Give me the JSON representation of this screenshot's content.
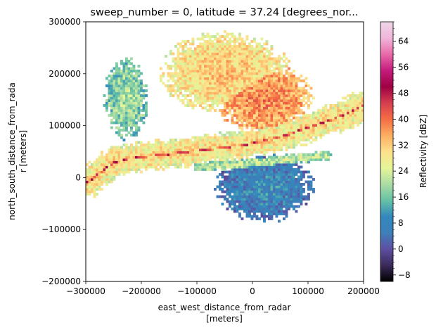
{
  "chart_data": {
    "type": "heatmap",
    "title": "sweep_number = 0, latitude = 37.24 [degrees_nor...",
    "xlabel_lines": [
      "east_west_distance_from_radar",
      "[meters]"
    ],
    "ylabel_lines": [
      "north_south_distance_from_rada",
      "r [meters]"
    ],
    "xlim": [
      -300000,
      200000
    ],
    "ylim": [
      -200000,
      300000
    ],
    "xticks": [
      {
        "value": -300000,
        "label": "−300000"
      },
      {
        "value": -200000,
        "label": "−200000"
      },
      {
        "value": -100000,
        "label": "−100000"
      },
      {
        "value": 0,
        "label": "0"
      },
      {
        "value": 100000,
        "label": "100000"
      },
      {
        "value": 200000,
        "label": "200000"
      }
    ],
    "yticks": [
      {
        "value": -200000,
        "label": "−200000"
      },
      {
        "value": -100000,
        "label": "−100000"
      },
      {
        "value": 0,
        "label": "0"
      },
      {
        "value": 100000,
        "label": "100000"
      },
      {
        "value": 200000,
        "label": "200000"
      },
      {
        "value": 300000,
        "label": "300000"
      }
    ],
    "colorbar": {
      "label": "Reflectivity [dBZ]",
      "range": [
        -10,
        70
      ],
      "ticks": [
        {
          "value": -8,
          "label": "−8"
        },
        {
          "value": 0,
          "label": "0"
        },
        {
          "value": 8,
          "label": "8"
        },
        {
          "value": 16,
          "label": "16"
        },
        {
          "value": 24,
          "label": "24"
        },
        {
          "value": 32,
          "label": "32"
        },
        {
          "value": 40,
          "label": "40"
        },
        {
          "value": 48,
          "label": "48"
        },
        {
          "value": 56,
          "label": "56"
        },
        {
          "value": 64,
          "label": "64"
        }
      ],
      "colormap": "Spectral_r",
      "colormap_stops": [
        "#000000",
        "#3b2a5a",
        "#5e4fa2",
        "#3e7fb9",
        "#3288bd",
        "#66c2a5",
        "#abdda4",
        "#e6f598",
        "#fee08b",
        "#fdae61",
        "#f46d43",
        "#d53e4f",
        "#9e0142",
        "#c51b7d",
        "#e86aa8",
        "#f1b6da",
        "#efd6e8"
      ]
    },
    "regions": [
      {
        "kind": "band",
        "points": [
          [
            -300000,
            -12000
          ],
          [
            -280000,
            5000
          ],
          [
            -250000,
            28000
          ],
          [
            -220000,
            35000
          ],
          [
            -180000,
            40000
          ],
          [
            -140000,
            45000
          ],
          [
            -100000,
            50000
          ],
          [
            -60000,
            55000
          ],
          [
            -20000,
            60000
          ],
          [
            20000,
            70000
          ],
          [
            60000,
            80000
          ],
          [
            100000,
            95000
          ],
          [
            140000,
            110000
          ],
          [
            175000,
            125000
          ],
          [
            200000,
            140000
          ]
        ],
        "halfwidth": 12000,
        "dbz": 42
      },
      {
        "kind": "band",
        "points": [
          [
            -300000,
            -12000
          ],
          [
            -280000,
            5000
          ],
          [
            -250000,
            28000
          ],
          [
            -220000,
            35000
          ],
          [
            -180000,
            40000
          ],
          [
            -140000,
            45000
          ],
          [
            -100000,
            50000
          ],
          [
            -60000,
            55000
          ],
          [
            -20000,
            60000
          ],
          [
            20000,
            70000
          ],
          [
            60000,
            80000
          ],
          [
            100000,
            95000
          ],
          [
            140000,
            110000
          ],
          [
            175000,
            125000
          ],
          [
            200000,
            140000
          ]
        ],
        "halfwidth": 30000,
        "dbz": 28
      },
      {
        "kind": "blob",
        "center": [
          20000,
          150000
        ],
        "radius": [
          90000,
          70000
        ],
        "dbz": 36
      },
      {
        "kind": "blob",
        "center": [
          -50000,
          200000
        ],
        "radius": [
          120000,
          80000
        ],
        "dbz": 30
      },
      {
        "kind": "blob",
        "center": [
          -230000,
          150000
        ],
        "radius": [
          40000,
          80000
        ],
        "dbz": 18
      },
      {
        "kind": "blob",
        "center": [
          20000,
          -20000
        ],
        "radius": [
          90000,
          70000
        ],
        "dbz": 7
      },
      {
        "kind": "band",
        "points": [
          [
            -100000,
            20000
          ],
          [
            -40000,
            22000
          ],
          [
            20000,
            28000
          ],
          [
            80000,
            35000
          ],
          [
            130000,
            40000
          ]
        ],
        "halfwidth": 10000,
        "dbz": 20
      }
    ]
  }
}
